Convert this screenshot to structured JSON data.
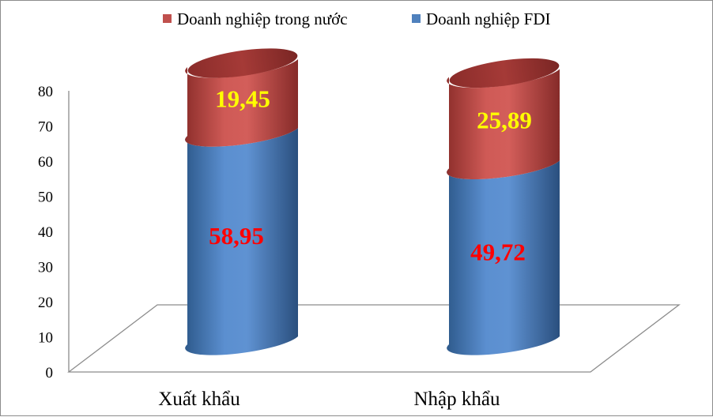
{
  "chart_data": {
    "type": "bar",
    "stacked": true,
    "style": "3d-cylinder",
    "categories": [
      "Xuất khẩu",
      "Nhập khẩu"
    ],
    "series": [
      {
        "name": "Doanh nghiệp FDI",
        "values": [
          58.95,
          49.72
        ],
        "color": "#4f81bd",
        "label_color": "#ff0000",
        "labels": [
          "58,95",
          "49,72"
        ]
      },
      {
        "name": "Doanh nghiệp trong nước",
        "values": [
          19.45,
          25.89
        ],
        "color": "#c0504d",
        "label_color": "#ffff00",
        "labels": [
          "19,45",
          "25,89"
        ]
      }
    ],
    "legend_order": [
      1,
      0
    ],
    "legend_position": "top",
    "ylim": [
      0,
      80
    ],
    "yticks": [
      "0",
      "10",
      "20",
      "30",
      "40",
      "50",
      "60",
      "70",
      "80"
    ],
    "grid": false
  }
}
